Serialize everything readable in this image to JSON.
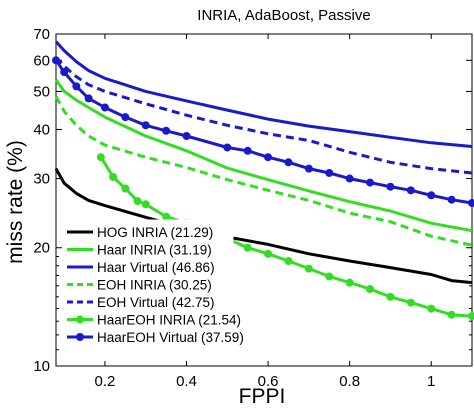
{
  "chart_data": {
    "type": "line",
    "title": "INRIA, AdaBoost, Passive",
    "xlabel": "FPPI",
    "ylabel": "miss rate (%)",
    "xlim": [
      0.08,
      1.1
    ],
    "ylim": [
      10,
      70
    ],
    "yscale": "log",
    "x_ticks": [
      0.2,
      0.4,
      0.6,
      0.8,
      1
    ],
    "x_tick_labels": [
      "0.2",
      "0.4",
      "0.6",
      "0.8",
      "1"
    ],
    "y_ticks": [
      10,
      20,
      30,
      40,
      50,
      60,
      70
    ],
    "y_tick_labels": [
      "10",
      "20",
      "30",
      "40",
      "50",
      "60",
      "70"
    ],
    "grid": false,
    "legend_position": "bottom-left",
    "series": [
      {
        "name": "HOG INRIA (21.29)",
        "color": "#000000",
        "dash": "solid",
        "markers": false,
        "points": [
          [
            0.08,
            31.8
          ],
          [
            0.1,
            29.2
          ],
          [
            0.13,
            27.5
          ],
          [
            0.16,
            26.4
          ],
          [
            0.2,
            25.6
          ],
          [
            0.3,
            23.9
          ],
          [
            0.4,
            22.4
          ],
          [
            0.5,
            21.3
          ],
          [
            0.6,
            20.4
          ],
          [
            0.7,
            19.3
          ],
          [
            0.8,
            18.5
          ],
          [
            0.9,
            17.8
          ],
          [
            1.0,
            17.1
          ],
          [
            1.05,
            16.5
          ],
          [
            1.1,
            16.3
          ]
        ]
      },
      {
        "name": "Haar INRIA (31.19)",
        "color": "#33dd22",
        "dash": "solid",
        "markers": false,
        "points": [
          [
            0.08,
            53.5
          ],
          [
            0.1,
            50.0
          ],
          [
            0.13,
            47.5
          ],
          [
            0.16,
            45.5
          ],
          [
            0.2,
            43.0
          ],
          [
            0.3,
            38.5
          ],
          [
            0.4,
            35.3
          ],
          [
            0.5,
            31.9
          ],
          [
            0.6,
            29.8
          ],
          [
            0.7,
            27.9
          ],
          [
            0.8,
            26.2
          ],
          [
            0.9,
            24.8
          ],
          [
            1.0,
            23.1
          ],
          [
            1.1,
            22.1
          ]
        ]
      },
      {
        "name": "Haar Virtual (46.86)",
        "color": "#1a1acc",
        "dash": "solid",
        "markers": false,
        "points": [
          [
            0.08,
            67.0
          ],
          [
            0.1,
            63.5
          ],
          [
            0.13,
            59.5
          ],
          [
            0.16,
            56.5
          ],
          [
            0.2,
            54.0
          ],
          [
            0.3,
            50.0
          ],
          [
            0.4,
            47.3
          ],
          [
            0.5,
            44.8
          ],
          [
            0.6,
            42.5
          ],
          [
            0.7,
            40.8
          ],
          [
            0.8,
            39.5
          ],
          [
            0.9,
            38.2
          ],
          [
            1.0,
            37.0
          ],
          [
            1.1,
            36.2
          ]
        ]
      },
      {
        "name": "EOH INRIA (30.25)",
        "color": "#33dd22",
        "dash": "dashed",
        "markers": false,
        "points": [
          [
            0.08,
            48.5
          ],
          [
            0.1,
            44.5
          ],
          [
            0.13,
            41.0
          ],
          [
            0.16,
            38.5
          ],
          [
            0.2,
            36.5
          ],
          [
            0.3,
            34.0
          ],
          [
            0.4,
            32.0
          ],
          [
            0.5,
            29.8
          ],
          [
            0.6,
            28.0
          ],
          [
            0.7,
            26.4
          ],
          [
            0.8,
            24.5
          ],
          [
            0.9,
            23.3
          ],
          [
            1.0,
            21.4
          ],
          [
            1.1,
            20.3
          ]
        ]
      },
      {
        "name": "EOH Virtual (42.75)",
        "color": "#1a1acc",
        "dash": "dashed",
        "markers": false,
        "points": [
          [
            0.08,
            61.0
          ],
          [
            0.1,
            58.0
          ],
          [
            0.13,
            54.5
          ],
          [
            0.16,
            52.0
          ],
          [
            0.2,
            50.0
          ],
          [
            0.3,
            46.5
          ],
          [
            0.4,
            43.5
          ],
          [
            0.5,
            41.0
          ],
          [
            0.6,
            39.0
          ],
          [
            0.7,
            37.5
          ],
          [
            0.8,
            35.0
          ],
          [
            0.9,
            33.0
          ],
          [
            1.0,
            31.8
          ],
          [
            1.1,
            31.0
          ]
        ]
      },
      {
        "name": "HaarEOH INRIA (21.54)",
        "color": "#33dd22",
        "dash": "solid",
        "markers": true,
        "points": [
          [
            0.19,
            34.0
          ],
          [
            0.22,
            30.3
          ],
          [
            0.25,
            28.3
          ],
          [
            0.28,
            26.3
          ],
          [
            0.3,
            25.8
          ],
          [
            0.35,
            24.0
          ],
          [
            0.4,
            23.1
          ],
          [
            0.45,
            22.0
          ],
          [
            0.5,
            21.1
          ],
          [
            0.55,
            20.0
          ],
          [
            0.6,
            19.3
          ],
          [
            0.65,
            18.5
          ],
          [
            0.7,
            17.7
          ],
          [
            0.75,
            16.9
          ],
          [
            0.8,
            16.3
          ],
          [
            0.85,
            15.7
          ],
          [
            0.9,
            15.0
          ],
          [
            0.95,
            14.5
          ],
          [
            1.0,
            14.0
          ],
          [
            1.05,
            13.5
          ],
          [
            1.1,
            13.4
          ]
        ]
      },
      {
        "name": "HaarEOH Virtual (37.59)",
        "color": "#1a1acc",
        "dash": "solid",
        "markers": true,
        "points": [
          [
            0.08,
            60.0
          ],
          [
            0.1,
            56.0
          ],
          [
            0.13,
            51.5
          ],
          [
            0.16,
            48.0
          ],
          [
            0.2,
            45.5
          ],
          [
            0.25,
            43.0
          ],
          [
            0.3,
            41.0
          ],
          [
            0.35,
            39.7
          ],
          [
            0.4,
            38.5
          ],
          [
            0.5,
            36.0
          ],
          [
            0.55,
            35.3
          ],
          [
            0.6,
            34.0
          ],
          [
            0.65,
            33.0
          ],
          [
            0.7,
            31.8
          ],
          [
            0.75,
            31.0
          ],
          [
            0.8,
            30.0
          ],
          [
            0.85,
            29.3
          ],
          [
            0.9,
            28.6
          ],
          [
            0.95,
            28.0
          ],
          [
            1.0,
            27.2
          ],
          [
            1.05,
            26.5
          ],
          [
            1.1,
            26.0
          ]
        ]
      }
    ]
  }
}
